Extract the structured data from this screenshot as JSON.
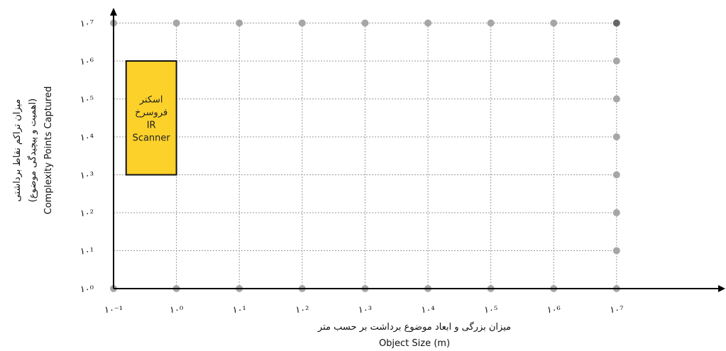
{
  "chart_data": {
    "type": "scatter",
    "xlabel_fa": "میزان بزرگی و ابعاد موضوع برداشت بر حسب متر",
    "xlabel_en": "Object Size (m)",
    "ylabel_fa_1": "میزان تراکم نقاط برداشتی",
    "ylabel_fa_2": "(اهمیت و پیچیدگی موضوع)",
    "ylabel_en": "Complexity Points Captured",
    "x_scale": "log",
    "y_scale": "log",
    "x_ticks": [
      -1,
      0,
      1,
      2,
      3,
      4,
      5,
      6,
      7
    ],
    "y_ticks": [
      0,
      1,
      2,
      3,
      4,
      5,
      6,
      7
    ],
    "x_tick_labels": [
      "۱۰⁻¹",
      "۱۰⁰",
      "۱۰¹",
      "۱۰²",
      "۱۰³",
      "۱۰⁴",
      "۱۰⁵",
      "۱۰⁶",
      "۱۰⁷"
    ],
    "y_tick_labels": [
      "۱۰⁰",
      "۱۰¹",
      "۱۰²",
      "۱۰³",
      "۱۰⁴",
      "۱۰⁵",
      "۱۰⁶",
      "۱۰⁷"
    ],
    "grid": true,
    "regions": [
      {
        "label_lines": [
          "اسکنر",
          "فروسرخ",
          "IR",
          "Scanner"
        ],
        "x_range": [
          -0.8,
          0.0
        ],
        "y_range": [
          3,
          6
        ],
        "fill": "#FCD12A",
        "stroke": "#111111"
      }
    ]
  },
  "colors": {
    "grid_point": "#a6a6a6",
    "corner_point": "#666666",
    "grid_line": "#9a9a9a",
    "axis": "#000000"
  }
}
